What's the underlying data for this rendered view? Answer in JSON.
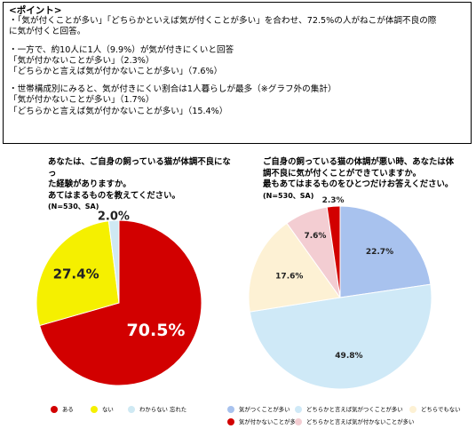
{
  "summary": {
    "heading": "<ポイント>",
    "lines": [
      "・「気が付くことが多い」「どちらかといえば気が付くことが多い」を合わせ、72.5%の人がねこが体調不良の際",
      "に気が付くと回答。",
      "・一方で、約10人に1人（9.9%）が気が付きにくいと回答",
      "「気が付かないことが多い」（2.3%）",
      "「どちらかと言えば気が付かないことが多い」（7.6%）",
      "・世帯構成別にみると、気が付きにくい割合は1人暮らしが最多（※グラフ外の集計）",
      "「気が付かないことが多い」（1.7%）",
      "「どちらかと言えば気が付かないことが多い」（15.4%）"
    ]
  },
  "chart_data": [
    {
      "type": "pie",
      "title_lines": [
        "あなたは、ご自身の飼っている猫が体調不良になっ",
        "た経験がありますか。",
        "あてはまるものを教えてください。"
      ],
      "note": "(N=530、SA)",
      "categories": [
        "ある",
        "ない",
        "わからない 忘れた"
      ],
      "values": [
        70.5,
        27.4,
        2.0
      ],
      "labels": [
        "70.5%",
        "27.4%",
        "2.0%"
      ],
      "colors": [
        "#d20000",
        "#f5f000",
        "#cfe9f3"
      ],
      "legend_position": "bottom"
    },
    {
      "type": "pie",
      "title_lines": [
        "ご自身の飼っている猫の体調が悪い時、あなたは体",
        "調不良に気が付くことができていますか。",
        "最もあてはまるものをひとつだけお答えください。"
      ],
      "note": "(N=530、SA)",
      "categories": [
        "気がつくことが多い",
        "どちらかと言えば気がつくことが多い",
        "どちらでもない",
        "気が付かないことが多い",
        "どちらかと言えば気が付かないことが多い"
      ],
      "slice_order": [
        0,
        1,
        2,
        4,
        3
      ],
      "values": [
        22.7,
        49.8,
        17.6,
        2.3,
        7.6
      ],
      "labels": [
        "22.7%",
        "49.8%",
        "17.6%",
        "2.3%",
        "7.6%"
      ],
      "colors": [
        "#a8c2ee",
        "#cfe9f7",
        "#fdf1d4",
        "#d20000",
        "#f3cdd2"
      ],
      "legend_position": "bottom"
    }
  ]
}
